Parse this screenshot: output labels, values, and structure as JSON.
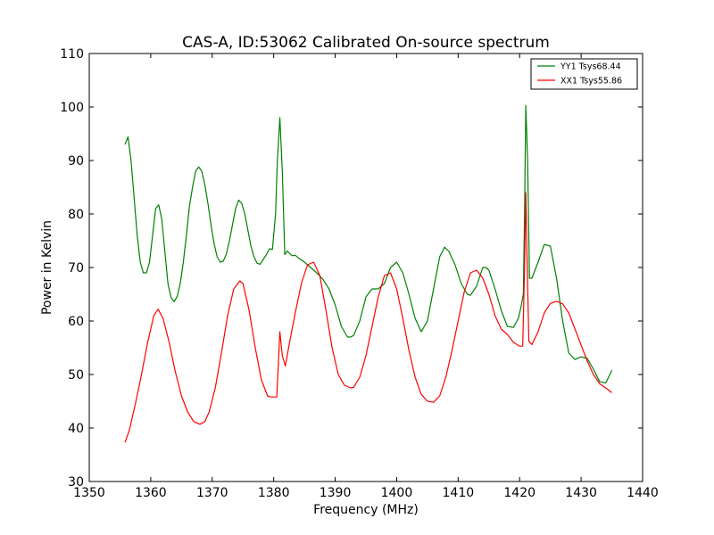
{
  "chart_data": {
    "type": "line",
    "title": "CAS-A, ID:53062 Calibrated On-source spectrum",
    "xlabel": "Frequency (MHz)",
    "ylabel": "Power in Kelvin",
    "xlim": [
      1350,
      1440
    ],
    "ylim": [
      30,
      110
    ],
    "xticks": [
      1350,
      1360,
      1370,
      1380,
      1390,
      1400,
      1410,
      1420,
      1430,
      1440
    ],
    "yticks": [
      30,
      40,
      50,
      60,
      70,
      80,
      90,
      100,
      110
    ],
    "grid": false,
    "legend_position": "top-right",
    "series": [
      {
        "name": "YY1 Tsys68.44",
        "color": "#008000",
        "x": [
          1355.8,
          1356.3,
          1356.8,
          1357.3,
          1357.8,
          1358.3,
          1358.8,
          1359.3,
          1359.8,
          1360.3,
          1360.8,
          1361.3,
          1361.8,
          1362.3,
          1362.8,
          1363.3,
          1363.8,
          1364.3,
          1364.8,
          1365.3,
          1365.8,
          1366.3,
          1366.8,
          1367.3,
          1367.8,
          1368.3,
          1368.8,
          1369.3,
          1369.8,
          1370.3,
          1370.8,
          1371.3,
          1371.8,
          1372.3,
          1372.8,
          1373.3,
          1373.8,
          1374.3,
          1374.8,
          1375.3,
          1375.8,
          1376.3,
          1376.8,
          1377.3,
          1377.8,
          1378.3,
          1378.8,
          1379.3,
          1379.8,
          1380.3,
          1380.6,
          1381.0,
          1381.4,
          1381.8,
          1382.2,
          1382.6,
          1383.0,
          1383.5,
          1384.0,
          1385.0,
          1386.0,
          1387.0,
          1388.0,
          1389.0,
          1390.0,
          1391.0,
          1392.0,
          1392.5,
          1393.0,
          1394.0,
          1395.0,
          1396.0,
          1397.0,
          1398.0,
          1399.0,
          1400.0,
          1401.0,
          1402.0,
          1403.0,
          1404.0,
          1405.0,
          1406.0,
          1407.0,
          1407.8,
          1408.5,
          1409.5,
          1410.5,
          1411.5,
          1412.0,
          1413.0,
          1414.0,
          1414.5,
          1415.0,
          1416.0,
          1417.0,
          1418.0,
          1419.0,
          1419.8,
          1420.2,
          1420.6,
          1420.8,
          1421.0,
          1421.3,
          1421.6,
          1422.0,
          1423.0,
          1424.0,
          1425.0,
          1426.0,
          1427.0,
          1428.0,
          1429.0,
          1430.0,
          1431.0,
          1432.0,
          1433.0,
          1434.0,
          1435.0
        ],
        "values": [
          93,
          94.4,
          90,
          83,
          76,
          71,
          69,
          69,
          71,
          76,
          81,
          81.7,
          79,
          73,
          67,
          64.4,
          63.6,
          64.6,
          67,
          71,
          76,
          81.5,
          85,
          88,
          88.8,
          88,
          85.5,
          82,
          78,
          74.5,
          72,
          71,
          71.2,
          72.5,
          75,
          78,
          81,
          82.6,
          82,
          80,
          77,
          74,
          72,
          70.8,
          70.6,
          71.5,
          72.4,
          73.5,
          73.4,
          80,
          90,
          98,
          88,
          72.4,
          73.1,
          72.6,
          72.2,
          72.3,
          71.8,
          71,
          70,
          69,
          67.8,
          66,
          63,
          59,
          57,
          57,
          57.3,
          60,
          64.5,
          66,
          66,
          67,
          70,
          71,
          69,
          65,
          60.5,
          58,
          60,
          66,
          72,
          73.8,
          73,
          70.5,
          67,
          65,
          64.8,
          66.5,
          70,
          70,
          69.5,
          66,
          62,
          59,
          58.8,
          60.5,
          62.5,
          65,
          80,
          100.3,
          90,
          68,
          68,
          71,
          74.3,
          74,
          68,
          60,
          54,
          52.8,
          53.3,
          53,
          51,
          48.7,
          48.4,
          50.8
        ]
      },
      {
        "name": "XX1 Tsys55.86",
        "color": "#ff0000",
        "x": [
          1355.8,
          1356.5,
          1357.5,
          1358.5,
          1359.5,
          1360.5,
          1361.2,
          1362.0,
          1363.0,
          1364.0,
          1365.0,
          1366.0,
          1367.0,
          1368.0,
          1368.8,
          1369.5,
          1370.5,
          1371.5,
          1372.5,
          1373.5,
          1374.5,
          1375.0,
          1376.0,
          1377.0,
          1378.0,
          1379.0,
          1379.5,
          1380.0,
          1380.5,
          1381.0,
          1381.4,
          1381.9,
          1382.5,
          1383.5,
          1384.5,
          1385.5,
          1386.5,
          1387.5,
          1388.5,
          1389.5,
          1390.5,
          1391.5,
          1392.5,
          1393.0,
          1394.0,
          1395.0,
          1396.0,
          1397.0,
          1398.0,
          1399.0,
          1400.0,
          1401.0,
          1402.0,
          1403.0,
          1404.0,
          1405.0,
          1406.0,
          1407.0,
          1408.0,
          1409.0,
          1410.0,
          1411.0,
          1412.0,
          1413.0,
          1414.0,
          1415.0,
          1416.0,
          1417.0,
          1418.0,
          1419.0,
          1420.0,
          1420.5,
          1420.8,
          1421.0,
          1421.2,
          1421.5,
          1422.0,
          1423.0,
          1424.0,
          1425.0,
          1426.0,
          1427.0,
          1428.0,
          1429.0,
          1430.0,
          1431.0,
          1432.0,
          1433.0,
          1434.0,
          1435.0
        ],
        "values": [
          37.3,
          39.5,
          44.5,
          50,
          56,
          61,
          62.2,
          60.5,
          56,
          50.5,
          46,
          43,
          41.2,
          40.7,
          41.2,
          43,
          47.5,
          54,
          61,
          66,
          67.5,
          67,
          62,
          55,
          49,
          46,
          45.8,
          45.8,
          45.8,
          58,
          53.5,
          51.6,
          55.5,
          61.5,
          67,
          70.5,
          71,
          68.5,
          62,
          55,
          50,
          48,
          47.5,
          47.6,
          49.5,
          53.5,
          59,
          64.5,
          68.5,
          69,
          66,
          60.5,
          54.5,
          49.5,
          46.3,
          45,
          44.8,
          46,
          49.5,
          54.5,
          60,
          65.5,
          69,
          69.5,
          68,
          65,
          61,
          58.5,
          57.5,
          56,
          55.3,
          55.3,
          70,
          84,
          72,
          56.2,
          55.6,
          58,
          61.5,
          63.3,
          63.7,
          63.2,
          61.5,
          58.5,
          55.5,
          52.5,
          50,
          48.3,
          47.5,
          46.6
        ]
      }
    ]
  }
}
